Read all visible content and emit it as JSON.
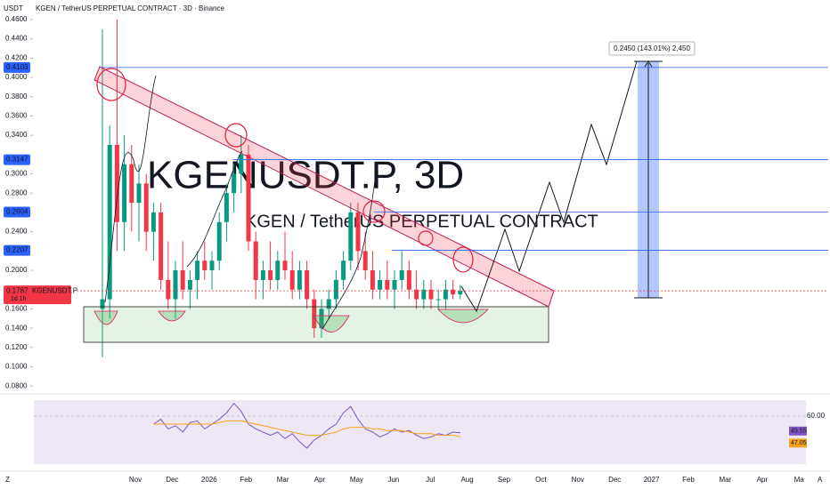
{
  "chart_data": [
    {
      "type": "candlestick",
      "title": "KGEN / TetherUS PERPETUAL CONTRACT · 3D · Binance",
      "y_unit": "USDT",
      "watermark": "KGENUSDT.P, 3D",
      "watermark_subtitle": "KGEN / TetherUS PERPETUAL CONTRACT",
      "x_labels": [
        "Nov",
        "Dec",
        "2026",
        "Feb",
        "Mar",
        "Apr",
        "May",
        "Jun",
        "Jul",
        "Aug",
        "Sep",
        "Oct",
        "Nov",
        "Dec",
        "2027",
        "Feb",
        "Mar",
        "Apr",
        "Ma"
      ],
      "ylim": [
        0.0747,
        0.4673
      ],
      "yticks": [
        {
          "value": 0.08,
          "label": "0.0800"
        },
        {
          "value": 0.1,
          "label": "0.1000"
        },
        {
          "value": 0.12,
          "label": "0.1200"
        },
        {
          "value": 0.14,
          "label": "0.1400"
        },
        {
          "value": 0.16,
          "label": "0.1600"
        },
        {
          "value": 0.2,
          "label": "0.2000"
        },
        {
          "value": 0.24,
          "label": "0.2400"
        },
        {
          "value": 0.28,
          "label": "0.2800"
        },
        {
          "value": 0.3,
          "label": "0.3000"
        },
        {
          "value": 0.34,
          "label": "0.3400"
        },
        {
          "value": 0.36,
          "label": "0.3600"
        },
        {
          "value": 0.38,
          "label": "0.3800"
        },
        {
          "value": 0.4,
          "label": "0.4000"
        },
        {
          "value": 0.42,
          "label": "0.4200"
        },
        {
          "value": 0.44,
          "label": "0.4400"
        },
        {
          "value": 0.46,
          "label": "0.4600"
        }
      ],
      "up_color": "#089981",
      "down_color": "#f23645",
      "candles": [
        [
          0.16,
          0.45,
          0.11,
          0.17
        ],
        [
          0.17,
          0.35,
          0.15,
          0.33
        ],
        [
          0.33,
          0.46,
          0.22,
          0.25
        ],
        [
          0.25,
          0.34,
          0.22,
          0.31
        ],
        [
          0.31,
          0.33,
          0.24,
          0.27
        ],
        [
          0.27,
          0.31,
          0.23,
          0.29
        ],
        [
          0.29,
          0.3,
          0.22,
          0.24
        ],
        [
          0.24,
          0.27,
          0.21,
          0.26
        ],
        [
          0.26,
          0.27,
          0.18,
          0.19
        ],
        [
          0.19,
          0.23,
          0.16,
          0.17
        ],
        [
          0.17,
          0.21,
          0.15,
          0.2
        ],
        [
          0.2,
          0.23,
          0.17,
          0.18
        ],
        [
          0.18,
          0.2,
          0.16,
          0.19
        ],
        [
          0.19,
          0.22,
          0.17,
          0.21
        ],
        [
          0.21,
          0.23,
          0.19,
          0.2
        ],
        [
          0.2,
          0.22,
          0.18,
          0.21
        ],
        [
          0.21,
          0.26,
          0.2,
          0.25
        ],
        [
          0.25,
          0.29,
          0.23,
          0.28
        ],
        [
          0.28,
          0.31,
          0.26,
          0.3
        ],
        [
          0.3,
          0.34,
          0.28,
          0.32
        ],
        [
          0.32,
          0.33,
          0.22,
          0.23
        ],
        [
          0.23,
          0.24,
          0.17,
          0.19
        ],
        [
          0.19,
          0.21,
          0.17,
          0.2
        ],
        [
          0.2,
          0.23,
          0.18,
          0.19
        ],
        [
          0.19,
          0.22,
          0.18,
          0.21
        ],
        [
          0.21,
          0.24,
          0.19,
          0.2
        ],
        [
          0.2,
          0.22,
          0.17,
          0.18
        ],
        [
          0.18,
          0.21,
          0.17,
          0.2
        ],
        [
          0.2,
          0.21,
          0.16,
          0.17
        ],
        [
          0.17,
          0.18,
          0.13,
          0.14
        ],
        [
          0.14,
          0.17,
          0.13,
          0.16
        ],
        [
          0.16,
          0.18,
          0.15,
          0.17
        ],
        [
          0.17,
          0.2,
          0.16,
          0.19
        ],
        [
          0.19,
          0.22,
          0.18,
          0.21
        ],
        [
          0.21,
          0.27,
          0.2,
          0.26
        ],
        [
          0.26,
          0.27,
          0.2,
          0.22
        ],
        [
          0.22,
          0.24,
          0.19,
          0.2
        ],
        [
          0.2,
          0.22,
          0.17,
          0.18
        ],
        [
          0.18,
          0.2,
          0.17,
          0.19
        ],
        [
          0.19,
          0.21,
          0.17,
          0.18
        ],
        [
          0.18,
          0.2,
          0.16,
          0.19
        ],
        [
          0.19,
          0.22,
          0.18,
          0.2
        ],
        [
          0.2,
          0.21,
          0.17,
          0.18
        ],
        [
          0.18,
          0.2,
          0.16,
          0.17
        ],
        [
          0.17,
          0.19,
          0.16,
          0.18
        ],
        [
          0.18,
          0.19,
          0.16,
          0.17
        ],
        [
          0.17,
          0.18,
          0.16,
          0.17
        ],
        [
          0.17,
          0.19,
          0.16,
          0.18
        ],
        [
          0.18,
          0.19,
          0.17,
          0.175
        ],
        [
          0.175,
          0.185,
          0.17,
          0.1787
        ]
      ],
      "levels": [
        {
          "value": 0.4103,
          "label": "0.4103"
        },
        {
          "value": 0.3147,
          "label": "0.3147"
        },
        {
          "value": 0.2604,
          "label": "0.2604"
        },
        {
          "value": 0.2207,
          "label": "0.2207"
        }
      ],
      "level_color": "#2962ff",
      "last_price": {
        "value": 0.1787,
        "label": "0.1787",
        "symbol": "KGENUSDT.P",
        "countdown": "1d 1h"
      },
      "measure_label": "0.2450 (143.01%) 2,450",
      "footer_left": "Z",
      "footer_right": "A"
    },
    {
      "type": "line",
      "ylim": [
        30,
        70
      ],
      "yticks": [
        {
          "value": 60,
          "label": "60.00"
        }
      ],
      "series": [
        {
          "name": "RSI",
          "color": "#7e57c2",
          "values": [
            null,
            null,
            null,
            null,
            null,
            null,
            null,
            55,
            58,
            52,
            54,
            50,
            56,
            57,
            52,
            55,
            58,
            62,
            68,
            63,
            55,
            52,
            50,
            48,
            50,
            46,
            49,
            44,
            40,
            45,
            48,
            52,
            55,
            62,
            66,
            58,
            52,
            50,
            47,
            49,
            52,
            50,
            51,
            48,
            46,
            47,
            49,
            48,
            50,
            49.55
          ],
          "value_labels": [
            null,
            null,
            null,
            null,
            null,
            null,
            null,
            null,
            null,
            null,
            null,
            null,
            null,
            null,
            null,
            null,
            null,
            null,
            null,
            null,
            null,
            null,
            null,
            null,
            null,
            null,
            null,
            null,
            null,
            null,
            null,
            null,
            null,
            null,
            null,
            null,
            null,
            null,
            null,
            null,
            null,
            null,
            null,
            null,
            null,
            null,
            null,
            null,
            null,
            "49.55"
          ]
        },
        {
          "name": "RSI MA",
          "color": "#f7a21b",
          "values": [
            null,
            null,
            null,
            null,
            null,
            null,
            null,
            55,
            55,
            55,
            55,
            55,
            55,
            55,
            55,
            55,
            56,
            57,
            57,
            57,
            56,
            55,
            54,
            53,
            52,
            51,
            50,
            49,
            48,
            48,
            48,
            49,
            50,
            52,
            53,
            53,
            53,
            52,
            52,
            51,
            51,
            51,
            50,
            49,
            49,
            49,
            48,
            48,
            48,
            47.05
          ],
          "value_labels": [
            null,
            null,
            null,
            null,
            null,
            null,
            null,
            null,
            null,
            null,
            null,
            null,
            null,
            null,
            null,
            null,
            null,
            null,
            null,
            null,
            null,
            null,
            null,
            null,
            null,
            null,
            null,
            null,
            null,
            null,
            null,
            null,
            null,
            null,
            null,
            null,
            null,
            null,
            null,
            null,
            null,
            null,
            null,
            null,
            null,
            null,
            null,
            null,
            null,
            "47.05"
          ]
        }
      ]
    }
  ]
}
